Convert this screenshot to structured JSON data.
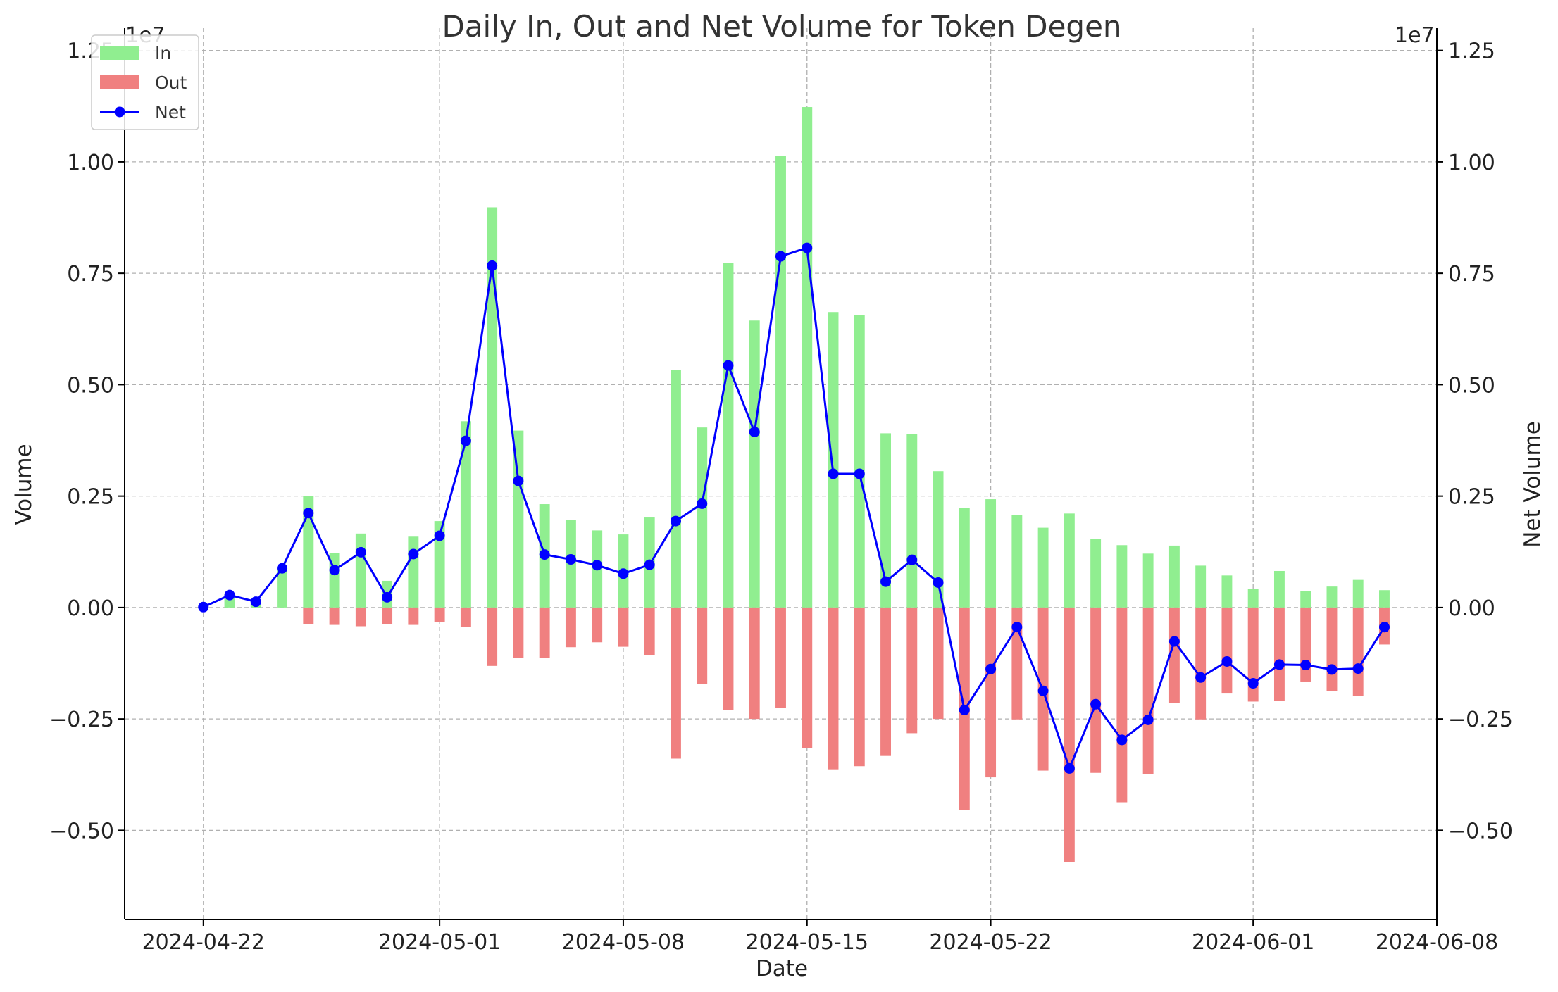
{
  "chart_data": {
    "type": "bar+line",
    "title": "Daily In, Out and Net Volume for Token Degen",
    "xlabel": "Date",
    "ylabel": "Volume",
    "ylabel_right": "Net Volume",
    "y_offset_label": "1e7",
    "y_offset_label_right": "1e7",
    "colors": {
      "in": "#90ee90",
      "out": "#f08080",
      "net": "#0000ff"
    },
    "legend": {
      "placement": "top-left",
      "entries": [
        "In",
        "Out",
        "Net"
      ]
    },
    "grid": true,
    "ylim": [
      -0.7,
      1.3
    ],
    "ylim_right": [
      -0.7,
      1.3
    ],
    "xlim": [
      "2024-04-19",
      "2024-06-08"
    ],
    "y_ticks": [
      {
        "value": 1.25,
        "label": "1.25"
      },
      {
        "value": 1.0,
        "label": "1.00"
      },
      {
        "value": 0.75,
        "label": "0.75"
      },
      {
        "value": 0.5,
        "label": "0.50"
      },
      {
        "value": 0.25,
        "label": "0.25"
      },
      {
        "value": 0.0,
        "label": "0.00"
      },
      {
        "value": -0.25,
        "label": "−0.25"
      },
      {
        "value": -0.5,
        "label": "−0.50"
      }
    ],
    "x_ticks": [
      {
        "date": "2024-04-22",
        "label": "2024-04-22"
      },
      {
        "date": "2024-05-01",
        "label": "2024-05-01"
      },
      {
        "date": "2024-05-08",
        "label": "2024-05-08"
      },
      {
        "date": "2024-05-15",
        "label": "2024-05-15"
      },
      {
        "date": "2024-05-22",
        "label": "2024-05-22"
      },
      {
        "date": "2024-06-01",
        "label": "2024-06-01"
      },
      {
        "date": "2024-06-08",
        "label": "2024-06-08"
      }
    ],
    "dates": [
      "2024-04-22",
      "2024-04-23",
      "2024-04-24",
      "2024-04-25",
      "2024-04-26",
      "2024-04-27",
      "2024-04-28",
      "2024-04-29",
      "2024-04-30",
      "2024-05-01",
      "2024-05-02",
      "2024-05-03",
      "2024-05-04",
      "2024-05-05",
      "2024-05-06",
      "2024-05-07",
      "2024-05-08",
      "2024-05-09",
      "2024-05-10",
      "2024-05-11",
      "2024-05-12",
      "2024-05-13",
      "2024-05-14",
      "2024-05-15",
      "2024-05-16",
      "2024-05-17",
      "2024-05-18",
      "2024-05-19",
      "2024-05-20",
      "2024-05-21",
      "2024-05-22",
      "2024-05-23",
      "2024-05-24",
      "2024-05-25",
      "2024-05-26",
      "2024-05-27",
      "2024-05-28",
      "2024-05-29",
      "2024-05-30",
      "2024-05-31",
      "2024-06-01",
      "2024-06-02",
      "2024-06-03",
      "2024-06-04",
      "2024-06-05",
      "2024-06-06"
    ],
    "series": [
      {
        "name": "In",
        "type": "bar",
        "values": [
          0.001,
          0.028,
          0.013,
          0.088,
          0.25,
          0.123,
          0.166,
          0.06,
          0.159,
          0.194,
          0.418,
          0.898,
          0.397,
          0.232,
          0.197,
          0.173,
          0.164,
          0.202,
          0.533,
          0.404,
          0.773,
          0.644,
          1.013,
          1.123,
          0.663,
          0.656,
          0.391,
          0.389,
          0.306,
          0.224,
          0.243,
          0.207,
          0.179,
          0.211,
          0.154,
          0.14,
          0.121,
          0.139,
          0.094,
          0.072,
          0.041,
          0.082,
          0.037,
          0.047,
          0.062,
          0.039
        ]
      },
      {
        "name": "Out",
        "type": "bar",
        "values": [
          0,
          0,
          0,
          0,
          -0.038,
          -0.039,
          -0.042,
          -0.037,
          -0.039,
          -0.033,
          -0.044,
          -0.131,
          -0.113,
          -0.113,
          -0.089,
          -0.078,
          -0.088,
          -0.106,
          -0.339,
          -0.171,
          -0.23,
          -0.25,
          -0.225,
          -0.316,
          -0.363,
          -0.356,
          -0.333,
          -0.282,
          -0.25,
          -0.454,
          -0.381,
          -0.251,
          -0.366,
          -0.572,
          -0.371,
          -0.437,
          -0.373,
          -0.215,
          -0.251,
          -0.193,
          -0.211,
          -0.21,
          -0.166,
          -0.188,
          -0.199,
          -0.083
        ]
      },
      {
        "name": "Net",
        "type": "line",
        "values": [
          0.001,
          0.028,
          0.013,
          0.088,
          0.212,
          0.084,
          0.124,
          0.023,
          0.12,
          0.161,
          0.374,
          0.767,
          0.284,
          0.119,
          0.108,
          0.095,
          0.076,
          0.096,
          0.194,
          0.233,
          0.543,
          0.394,
          0.788,
          0.807,
          0.3,
          0.3,
          0.058,
          0.107,
          0.056,
          -0.23,
          -0.138,
          -0.044,
          -0.187,
          -0.361,
          -0.217,
          -0.297,
          -0.252,
          -0.076,
          -0.157,
          -0.121,
          -0.17,
          -0.128,
          -0.129,
          -0.139,
          -0.137,
          -0.044
        ]
      }
    ]
  }
}
